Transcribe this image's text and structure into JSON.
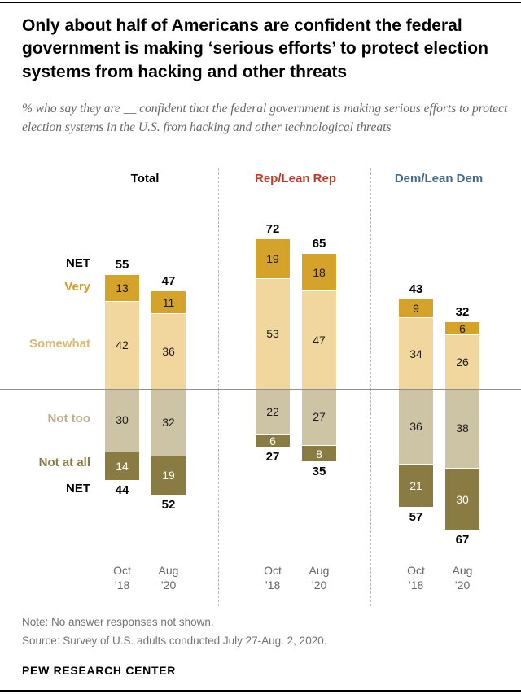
{
  "header": {
    "title": "Only about half of Americans are confident the federal government is making ‘serious efforts’ to protect election systems from hacking and other threats",
    "subtitle": "% who say they are __ confident that the federal government is making serious efforts to protect election systems in the U.S. from hacking and other technological threats"
  },
  "chart_data": {
    "type": "bar",
    "variant": "diverging-stacked",
    "unit": "%",
    "baseline": 0,
    "legend": [
      {
        "id": "net-top",
        "label": "NET",
        "color": "#000000"
      },
      {
        "id": "very",
        "label": "Very",
        "color": "#cf9d25"
      },
      {
        "id": "somewhat",
        "label": "Somewhat",
        "color": "#d9ba74"
      },
      {
        "id": "not-too",
        "label": "Not too",
        "color": "#bcae88"
      },
      {
        "id": "not-at-all",
        "label": "Not at all",
        "color": "#8a7b42"
      },
      {
        "id": "net-bottom",
        "label": "NET",
        "color": "#000000"
      }
    ],
    "colors": {
      "very": "#d5a329",
      "somewhat": "#f1d79e",
      "not_too": "#cdc3a5",
      "not_at_all": "#8a7b42"
    },
    "panels": [
      {
        "label": "Total",
        "color": "#000000",
        "bars": [
          {
            "date": [
              "Oct",
              "’18"
            ],
            "net_confident": 55,
            "very": 13,
            "somewhat": 42,
            "not_too": 30,
            "not_at_all": 14,
            "net_not_confident": 44
          },
          {
            "date": [
              "Aug",
              "’20"
            ],
            "net_confident": 47,
            "very": 11,
            "somewhat": 36,
            "not_too": 32,
            "not_at_all": 19,
            "net_not_confident": 52
          }
        ]
      },
      {
        "label": "Rep/Lean Rep",
        "color": "#bf3927",
        "bars": [
          {
            "date": [
              "Oct",
              "’18"
            ],
            "net_confident": 72,
            "very": 19,
            "somewhat": 53,
            "not_too": 22,
            "not_at_all": 6,
            "net_not_confident": 27
          },
          {
            "date": [
              "Aug",
              "’20"
            ],
            "net_confident": 65,
            "very": 18,
            "somewhat": 47,
            "not_too": 27,
            "not_at_all": 8,
            "net_not_confident": 35
          }
        ]
      },
      {
        "label": "Dem/Lean Dem",
        "color": "#436983",
        "bars": [
          {
            "date": [
              "Oct",
              "’18"
            ],
            "net_confident": 43,
            "very": 9,
            "somewhat": 34,
            "not_too": 36,
            "not_at_all": 21,
            "net_not_confident": 57
          },
          {
            "date": [
              "Aug",
              "’20"
            ],
            "net_confident": 32,
            "very": 6,
            "somewhat": 26,
            "not_too": 38,
            "not_at_all": 30,
            "net_not_confident": 67
          }
        ]
      }
    ]
  },
  "footer": {
    "note": "Note: No answer responses not shown.",
    "source": "Source: Survey of U.S. adults conducted July 27-Aug. 2, 2020.",
    "brand": "PEW RESEARCH CENTER"
  }
}
